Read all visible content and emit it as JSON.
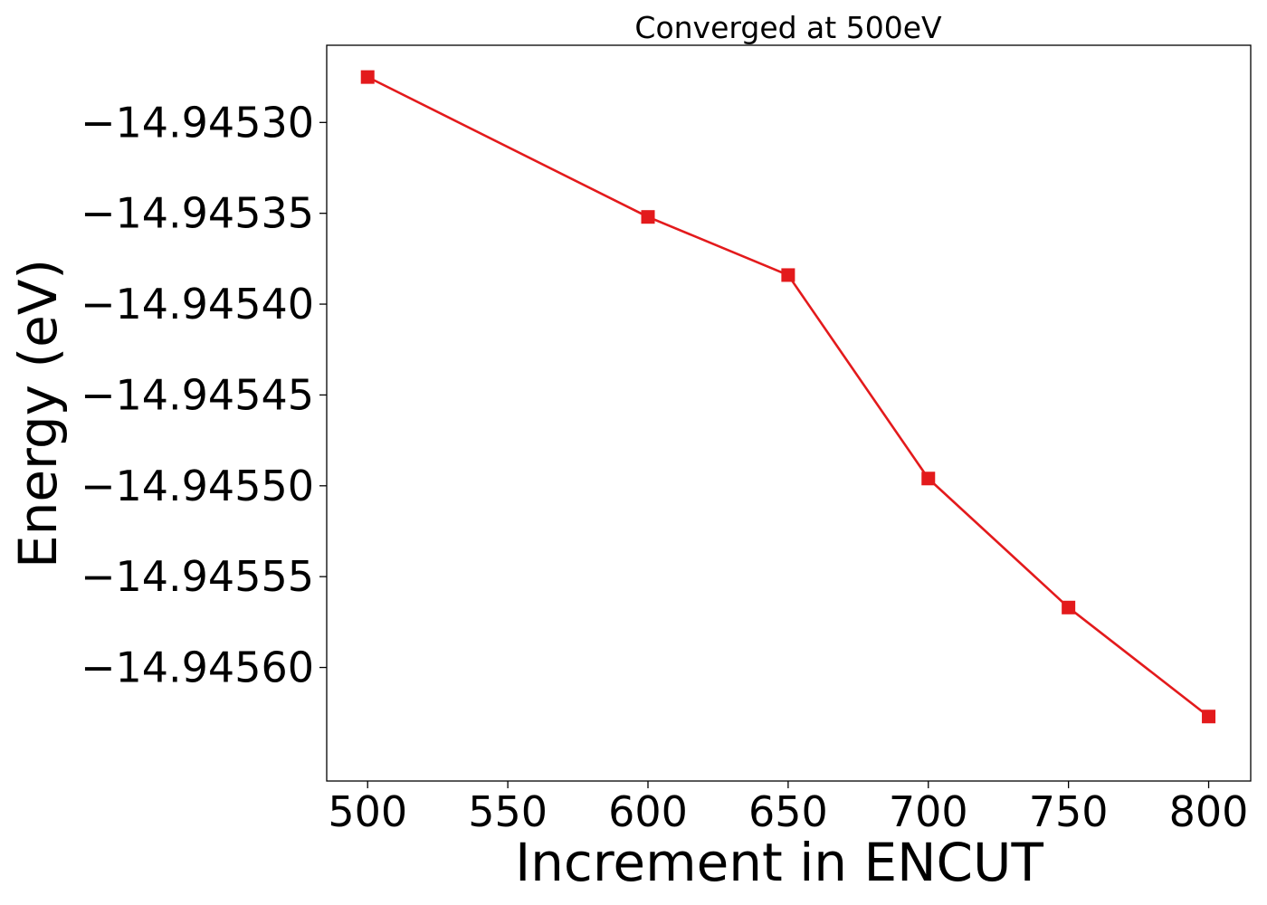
{
  "chart_data": {
    "type": "line",
    "title": "Converged at 500eV",
    "xlabel": "Increment in ENCUT",
    "ylabel": "Energy (eV)",
    "x": [
      500,
      600,
      650,
      700,
      750,
      800
    ],
    "series": [
      {
        "values": [
          -14.945275,
          -14.945352,
          -14.945384,
          -14.945496,
          -14.945567,
          -14.945627
        ],
        "color": "#e31a1c",
        "marker": "square"
      }
    ],
    "xticks": [
      500,
      550,
      600,
      650,
      700,
      750,
      800
    ],
    "xtick_labels": [
      "500",
      "550",
      "600",
      "650",
      "700",
      "750",
      "800"
    ],
    "yticks": [
      -14.9453,
      -14.94535,
      -14.9454,
      -14.94545,
      -14.9455,
      -14.94555,
      -14.9456
    ],
    "ytick_labels": [
      "−14.94530",
      "−14.94535",
      "−14.94540",
      "−14.94545",
      "−14.94550",
      "−14.94555",
      "−14.94560"
    ],
    "xlim": [
      485.4,
      815
    ],
    "ylim": [
      -14.9456625,
      -14.9452575
    ],
    "grid": false,
    "legend": "none"
  }
}
